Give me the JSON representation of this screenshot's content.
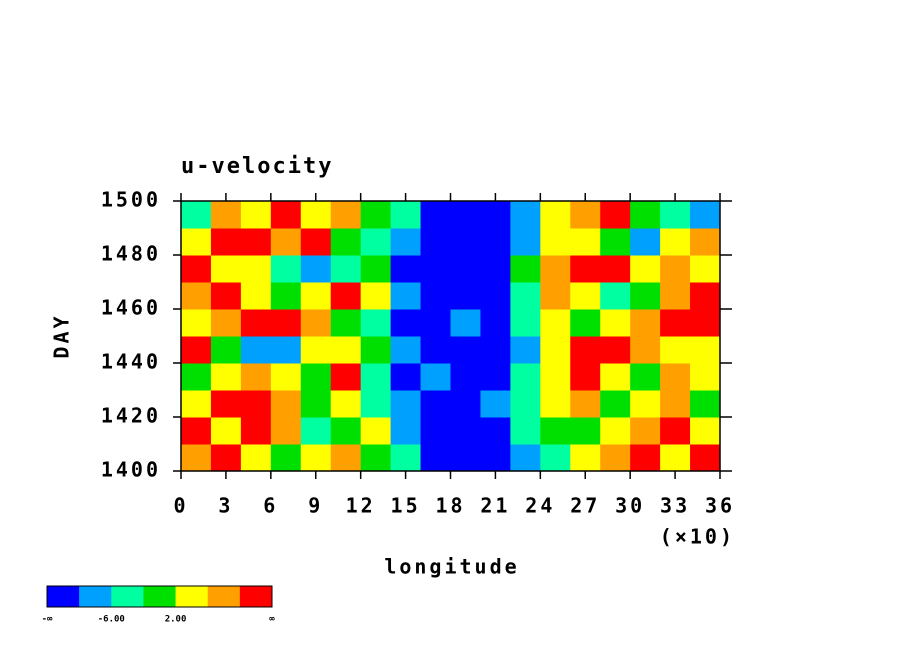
{
  "chart_data": {
    "type": "heatmap",
    "title": "u-velocity",
    "xlabel": "longitude",
    "ylabel": "DAY",
    "x_scale_label": "(×10)",
    "xlim": [
      0,
      36
    ],
    "xticks": [
      0,
      3,
      6,
      9,
      12,
      15,
      18,
      21,
      24,
      27,
      30,
      33,
      36
    ],
    "ylim": [
      1400,
      1500
    ],
    "yticks": [
      1400,
      1420,
      1440,
      1460,
      1480,
      1500
    ],
    "x_bins": [
      0,
      2,
      4,
      6,
      8,
      10,
      12,
      14,
      16,
      18,
      20,
      22,
      24,
      26,
      28,
      30,
      32,
      34,
      36
    ],
    "y_bins": [
      1400,
      1410,
      1420,
      1430,
      1440,
      1450,
      1460,
      1470,
      1480,
      1490,
      1500
    ],
    "values": [
      [
        8,
        12,
        4,
        -1,
        3,
        9,
        1,
        -4,
        -11,
        -13,
        -12,
        -8,
        -3,
        2,
        7,
        11,
        5,
        12
      ],
      [
        11,
        3,
        12,
        7,
        -3,
        0,
        4,
        -7,
        -12,
        -11,
        -13,
        -5,
        1,
        -2,
        4,
        8,
        12,
        3
      ],
      [
        4,
        12,
        11,
        8,
        -2,
        5,
        -3,
        -9,
        -11,
        -13,
        -10,
        -6,
        3,
        7,
        1,
        5,
        9,
        -1
      ],
      [
        -2,
        5,
        8,
        3,
        0,
        11,
        -5,
        -12,
        -10,
        -13,
        -12,
        -3,
        5,
        11,
        3,
        -1,
        7,
        4
      ],
      [
        12,
        1,
        -7,
        -9,
        4,
        3,
        -1,
        -8,
        -12,
        -11,
        -13,
        -7,
        4,
        12,
        11,
        9,
        2,
        5
      ],
      [
        3,
        9,
        12,
        10,
        7,
        1,
        -4,
        -11,
        -13,
        -10,
        -12,
        -4,
        2,
        -2,
        5,
        8,
        12,
        11
      ],
      [
        7,
        12,
        4,
        0,
        5,
        11,
        3,
        -9,
        -12,
        -13,
        -11,
        -6,
        8,
        4,
        -3,
        1,
        6,
        12
      ],
      [
        12,
        5,
        2,
        -5,
        -8,
        -3,
        -1,
        -12,
        -11,
        -13,
        -12,
        -2,
        7,
        11,
        12,
        5,
        9,
        3
      ],
      [
        4,
        11,
        12,
        8,
        11,
        -1,
        -4,
        -10,
        -13,
        -12,
        -13,
        -8,
        3,
        5,
        -1,
        -7,
        2,
        6
      ],
      [
        -3,
        8,
        5,
        11,
        3,
        6,
        1,
        -6,
        -11,
        -13,
        -12,
        -7,
        2,
        8,
        10,
        -2,
        -5,
        -9
      ]
    ],
    "colorbar": {
      "colors": [
        "#0000ff",
        "#00a0ff",
        "#00ffa0",
        "#00e000",
        "#ffff00",
        "#ffa000",
        "#ff0000"
      ],
      "levels": [
        -10,
        {
          "value": -6,
          "label": "-6.00"
        },
        -2,
        {
          "value": 2,
          "label": "2.00"
        },
        6,
        10
      ],
      "ends": [
        "-∞",
        "∞"
      ]
    }
  }
}
